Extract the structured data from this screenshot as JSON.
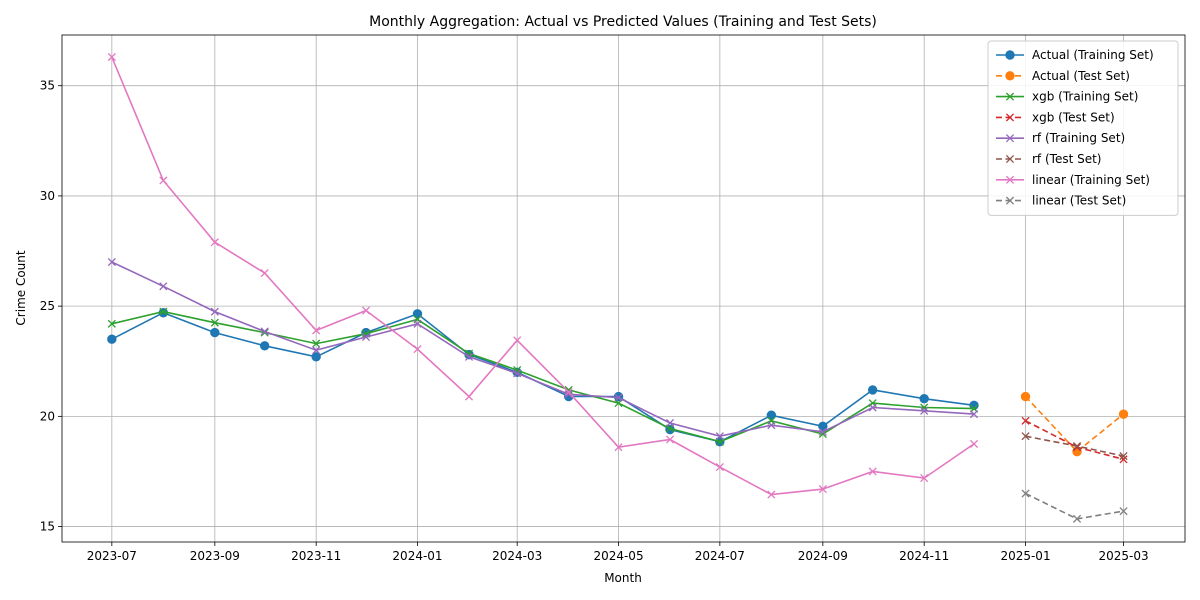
{
  "chart_data": {
    "type": "line",
    "title": "Monthly Aggregation: Actual vs Predicted Values (Training and Test Sets)",
    "xlabel": "Month",
    "ylabel": "Crime Count",
    "ylim": [
      14.3,
      37.3
    ],
    "xlim": [
      "2023-06-01",
      "2025-04-07"
    ],
    "grid": true,
    "legend_position": "top-right",
    "x_ticks": [
      "2023-07",
      "2023-09",
      "2023-11",
      "2024-01",
      "2024-03",
      "2024-05",
      "2024-07",
      "2024-09",
      "2024-11",
      "2025-01",
      "2025-03"
    ],
    "y_ticks": [
      15,
      20,
      25,
      30,
      35
    ],
    "train_x": [
      "2023-07",
      "2023-08",
      "2023-09",
      "2023-10",
      "2023-11",
      "2023-12",
      "2024-01",
      "2024-02",
      "2024-03",
      "2024-04",
      "2024-05",
      "2024-06",
      "2024-07",
      "2024-08",
      "2024-09",
      "2024-10",
      "2024-11",
      "2024-12"
    ],
    "test_x": [
      "2025-01",
      "2025-02",
      "2025-03"
    ],
    "series": [
      {
        "name": "Actual (Training Set)",
        "set": "train",
        "color": "#1f77b4",
        "marker": "circle",
        "dashed": false,
        "values": [
          23.5,
          24.7,
          23.8,
          23.2,
          22.7,
          23.8,
          24.65,
          22.8,
          22.0,
          20.9,
          20.9,
          19.4,
          18.85,
          20.05,
          19.55,
          21.2,
          20.8,
          20.5
        ]
      },
      {
        "name": "Actual (Test Set)",
        "set": "test",
        "color": "#ff7f0e",
        "marker": "circle",
        "dashed": true,
        "values": [
          20.9,
          18.4,
          20.1
        ]
      },
      {
        "name": "xgb (Training Set)",
        "set": "train",
        "color": "#2ca02c",
        "marker": "x",
        "dashed": false,
        "values": [
          24.2,
          24.75,
          24.25,
          23.8,
          23.3,
          23.75,
          24.4,
          22.85,
          22.1,
          21.2,
          20.6,
          19.45,
          18.85,
          19.8,
          19.2,
          20.6,
          20.4,
          20.35
        ]
      },
      {
        "name": "xgb (Test Set)",
        "set": "test",
        "color": "#d62728",
        "marker": "x",
        "dashed": true,
        "values": [
          19.8,
          18.6,
          18.05
        ]
      },
      {
        "name": "rf (Training Set)",
        "set": "train",
        "color": "#9467bd",
        "marker": "x",
        "dashed": false,
        "values": [
          27.0,
          25.9,
          24.75,
          23.85,
          23.0,
          23.6,
          24.2,
          22.7,
          21.95,
          21.0,
          20.85,
          19.7,
          19.1,
          19.6,
          19.3,
          20.4,
          20.25,
          20.1
        ]
      },
      {
        "name": "rf (Test Set)",
        "set": "test",
        "color": "#8c564b",
        "marker": "x",
        "dashed": true,
        "values": [
          19.1,
          18.65,
          18.2
        ]
      },
      {
        "name": "linear (Training Set)",
        "set": "train",
        "color": "#e377c2",
        "marker": "x",
        "dashed": false,
        "values": [
          36.3,
          30.7,
          27.9,
          26.5,
          23.9,
          24.8,
          23.05,
          20.9,
          23.45,
          21.1,
          18.6,
          18.95,
          17.7,
          16.45,
          16.7,
          17.5,
          17.2,
          18.75
        ]
      },
      {
        "name": "linear (Test Set)",
        "set": "test",
        "color": "#7f7f7f",
        "marker": "x",
        "dashed": true,
        "values": [
          16.5,
          15.35,
          15.7
        ]
      }
    ]
  }
}
